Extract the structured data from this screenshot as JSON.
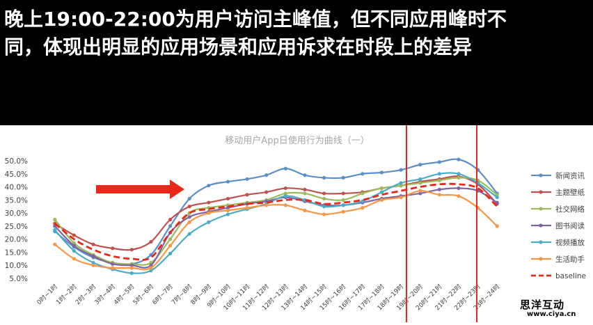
{
  "headline": {
    "line1": "晚上19:00-22:00为用户访问主峰值，但不同应用峰时不",
    "line2": "同，体现出明显的应用场景和应用诉求在时段上的差异"
  },
  "watermark": {
    "main": "思洋互动",
    "sub": "www.ciya.cn"
  },
  "chart_data": {
    "type": "line",
    "title": "移动用户App日使用行为曲线（一）",
    "categories": [
      "0时~1时",
      "1时~2时",
      "2时~3时",
      "3时~4时",
      "4时~5时",
      "5时~6时",
      "6时~7时",
      "7时~8时",
      "8时~9时",
      "9时~10时",
      "10时~11时",
      "11时~12时",
      "12时~13时",
      "13时~14时",
      "14时~15时",
      "15时~16时",
      "16时~17时",
      "17时~18时",
      "18时~19时",
      "19时~20时",
      "20时~21时",
      "21时~22时",
      "22时~23时",
      "23时~24时"
    ],
    "yticks": [
      "5.0%",
      "10.0%",
      "15.0%",
      "20.0%",
      "25.0%",
      "30.0%",
      "35.0%",
      "40.0%",
      "45.0%",
      "50.0%"
    ],
    "ylim": [
      5,
      50
    ],
    "legend_position": "right",
    "grid": false,
    "series": [
      {
        "name": "新闻资讯",
        "color": "#5b8ec9",
        "dashed": false,
        "values": [
          23,
          17,
          13,
          11,
          10.5,
          14,
          25,
          35.5,
          40.5,
          42,
          43,
          44.5,
          47,
          44.5,
          43.5,
          43.5,
          45,
          45.5,
          46.5,
          48.5,
          49.5,
          50.5,
          46.5,
          37.5
        ]
      },
      {
        "name": "主题壁纸",
        "color": "#c0504d",
        "dashed": false,
        "values": [
          26,
          21.5,
          18,
          16.5,
          16,
          19,
          27.5,
          32.5,
          34,
          35.5,
          37,
          38,
          39.5,
          39,
          37.5,
          37.5,
          38,
          39.5,
          40.5,
          42,
          43,
          44,
          41,
          33.5
        ]
      },
      {
        "name": "社交网络",
        "color": "#9bbb59",
        "dashed": false,
        "values": [
          27.5,
          18.5,
          14,
          11,
          10.5,
          11,
          20,
          30,
          32,
          33,
          34,
          35,
          37.5,
          37.5,
          35.5,
          35,
          37.5,
          39.5,
          40.5,
          41.5,
          42.5,
          43.5,
          42.5,
          37
        ]
      },
      {
        "name": "图书阅读",
        "color": "#8064a2",
        "dashed": false,
        "values": [
          25,
          17.5,
          13.5,
          10.5,
          10,
          10,
          22.5,
          28.5,
          30.5,
          32,
          33.5,
          34.5,
          36,
          34.5,
          33,
          33,
          34,
          35.5,
          36.5,
          37.5,
          39,
          39.5,
          38.5,
          34
        ]
      },
      {
        "name": "视频播放",
        "color": "#4bacc6",
        "dashed": false,
        "values": [
          23.5,
          15.5,
          11,
          8.5,
          7,
          8,
          14.5,
          22,
          26.5,
          29.5,
          31.5,
          33.5,
          36.5,
          35,
          32.5,
          33,
          34.5,
          38,
          41.5,
          43,
          45,
          45,
          41.5,
          36
        ]
      },
      {
        "name": "生活助手",
        "color": "#f79646",
        "dashed": false,
        "values": [
          18,
          12.5,
          10,
          9,
          9,
          9,
          17.5,
          26.5,
          30,
          31,
          32,
          33,
          33,
          31,
          29.5,
          30.5,
          32,
          35,
          36,
          38.5,
          37,
          36.5,
          32,
          25
        ]
      },
      {
        "name": "baseline",
        "color": "#e8281a",
        "dashed": true,
        "values": [
          26,
          20,
          16,
          13.5,
          12.5,
          13,
          22.5,
          30,
          31.5,
          32.5,
          33.5,
          34,
          35,
          35,
          33.5,
          34,
          35,
          37,
          38.5,
          40,
          41,
          41,
          39.5,
          32.5
        ]
      }
    ]
  }
}
